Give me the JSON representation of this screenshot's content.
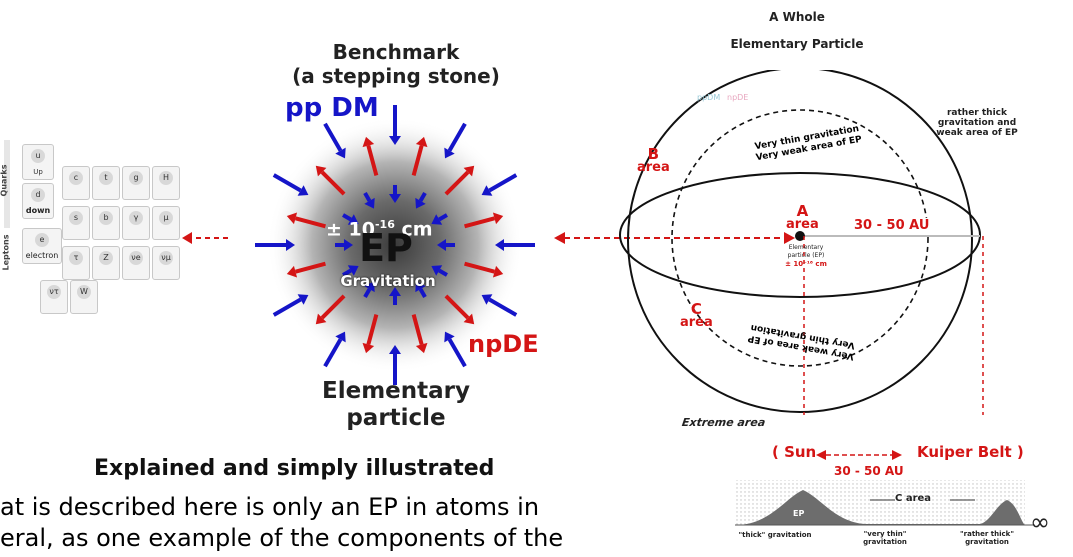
{
  "benchmark": {
    "title": "Benchmark",
    "subtitle": "(a stepping stone)"
  },
  "left_diagram": {
    "label_ppdm": "pp DM",
    "label_npde": "npDE",
    "scale": "± 10",
    "scale_exp": "-16",
    "scale_unit": "cm",
    "core": "EP",
    "core_sub": "Gravitation",
    "caption_line1": "Elementary",
    "caption_line2": "particle"
  },
  "standard_model": {
    "group_quarks": "Quarks",
    "group_leptons": "Leptons",
    "up_symbol": "u",
    "up_label": "Up",
    "down_symbol": "d",
    "down_label": "down",
    "electron_symbol": "e",
    "electron_label": "electron",
    "grid_symbols": [
      "c",
      "t",
      "g",
      "H",
      "s",
      "b",
      "γ",
      "μ",
      "τ",
      "Z",
      "νe",
      "νμ",
      "ντ",
      "W"
    ]
  },
  "right_diagram": {
    "title_line1": "A Whole",
    "title_line2": "Elementary Particle",
    "faint_labels": [
      "ppDM",
      "npDE"
    ],
    "note_thick_line1": "rather thick",
    "note_thick_line2": "gravitation and",
    "note_thick_line3": "weak area of EP",
    "b_letter": "B",
    "b_area": "area",
    "a_letter": "A",
    "a_area": "area",
    "c_letter": "C",
    "c_area": "area",
    "distance": "30 - 50 AU",
    "thin_top_line1": "Very thin gravitation",
    "thin_top_line2": "Very weak area of EP",
    "thin_bottom_line1": "Very weak area of EP",
    "thin_bottom_line2": "Very thin gravitation",
    "ep_label_line1": "Elementary",
    "ep_label_line2": "particle (EP)",
    "ep_size": "± 10⁻¹⁶ cm",
    "extreme": "Extreme area",
    "sun": "( Sun",
    "kuiper": "Kuiper Belt )",
    "distance2": "30 - 50 AU",
    "graph_c_area": "C area",
    "graph_ep": "EP",
    "infinity": "∞",
    "grav_thick": "\"thick\" gravitation",
    "grav_thin_line1": "\"very thin\"",
    "grav_thin_line2": "gravitation",
    "grav_rather_line1": "\"rather thick\"",
    "grav_rather_line2": "gravitation"
  },
  "bottom": {
    "heading": "Explained and simply illustrated",
    "line1": "at is described here is only an EP in atoms in",
    "line2": "eral, as one example of the components of the"
  },
  "colors": {
    "blue_arrow": "#1515c8",
    "red_arrow": "#d41515",
    "text": "#222222"
  }
}
